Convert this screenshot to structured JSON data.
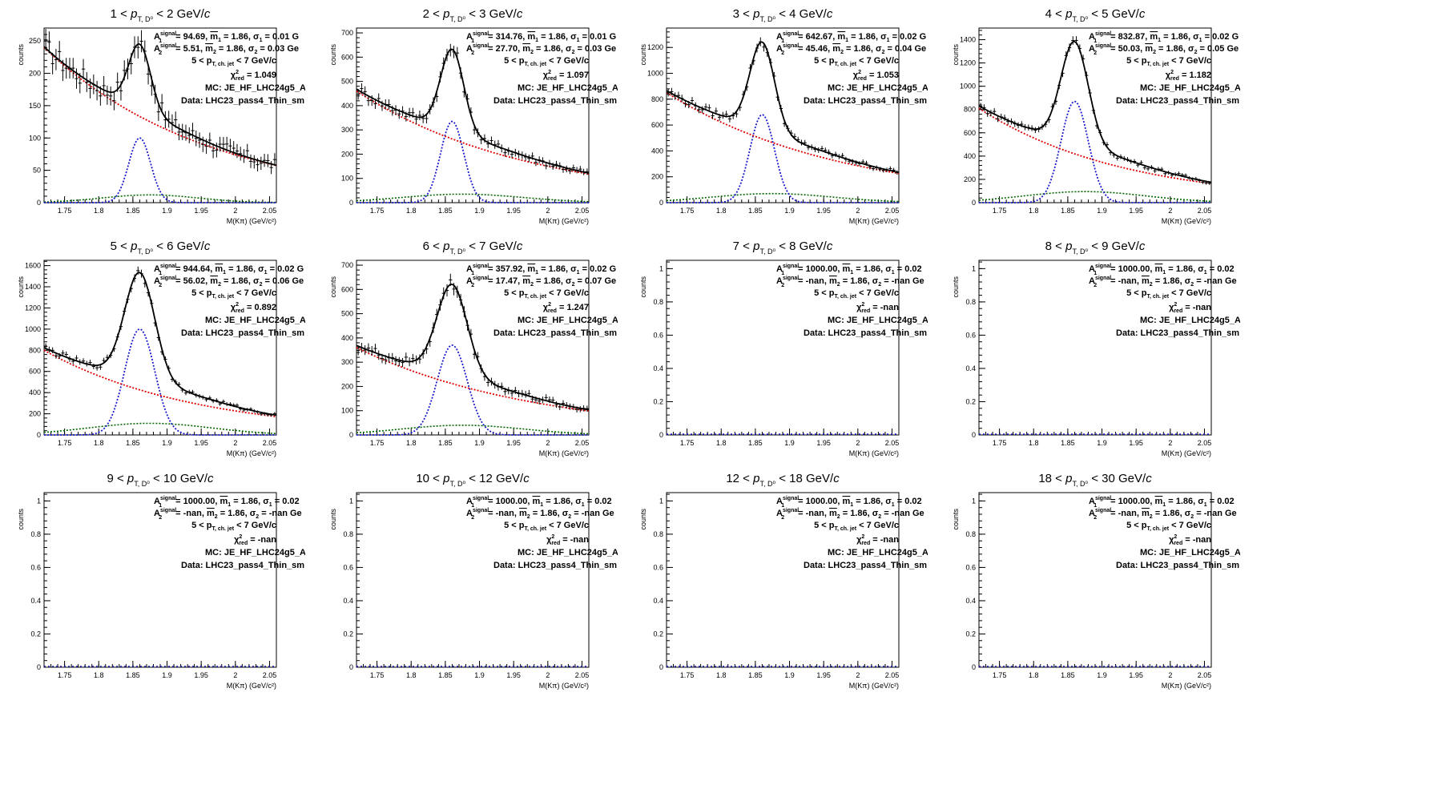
{
  "chart_data": [
    {
      "type": "scatter",
      "title": "1 < p_{T,D⁰} < 2 GeV/c",
      "title_lo": "1",
      "title_hi": "2",
      "ylabel": "counts",
      "xlabel": "M(Kπ) (GeV/c²)",
      "xlim": [
        1.72,
        2.06
      ],
      "ylim": [
        0,
        270
      ],
      "yticks": [
        0,
        50,
        100,
        150,
        200,
        250
      ],
      "fit": {
        "sig_amp": 100,
        "sig2_amp": 12,
        "sig2_sigma": 0.07,
        "bkg_a": 240,
        "bkg_b": 4.2,
        "sigma": 0.016
      },
      "info": {
        "a1": "94.69",
        "s1": "0.01 G",
        "a2": "5.51",
        "s2": "0.03 Ge",
        "chi2": "1.049"
      }
    },
    {
      "type": "scatter",
      "title": "2 < p_{T,D⁰} < 3 GeV/c",
      "title_lo": "2",
      "title_hi": "3",
      "ylabel": "counts",
      "xlabel": "M(Kπ) (GeV/c²)",
      "xlim": [
        1.72,
        2.06
      ],
      "ylim": [
        0,
        720
      ],
      "yticks": [
        0,
        100,
        200,
        300,
        400,
        500,
        600,
        700
      ],
      "fit": {
        "sig_amp": 335,
        "sig2_amp": 35,
        "sig2_sigma": 0.09,
        "bkg_a": 460,
        "bkg_b": 4.0,
        "sigma": 0.017
      },
      "info": {
        "a1": "314.76",
        "s1": "0.01 G",
        "a2": "27.70",
        "s2": "0.03 Ge",
        "chi2": "1.097"
      }
    },
    {
      "type": "scatter",
      "title": "3 < p_{T,D⁰} < 4 GeV/c",
      "title_lo": "3",
      "title_hi": "4",
      "ylabel": "counts",
      "xlabel": "M(Kπ) (GeV/c²)",
      "xlim": [
        1.72,
        2.06
      ],
      "ylim": [
        0,
        1350
      ],
      "yticks": [
        0,
        200,
        400,
        600,
        800,
        1000,
        1200
      ],
      "fit": {
        "sig_amp": 680,
        "sig2_amp": 70,
        "sig2_sigma": 0.09,
        "bkg_a": 850,
        "bkg_b": 3.9,
        "sigma": 0.018
      },
      "info": {
        "a1": "642.67",
        "s1": "0.02 G",
        "a2": "45.46",
        "s2": "0.04 Ge",
        "chi2": "1.053"
      }
    },
    {
      "type": "scatter",
      "title": "4 < p_{T,D⁰} < 5 GeV/c",
      "title_lo": "4",
      "title_hi": "5",
      "ylabel": "counts",
      "xlabel": "M(Kπ) (GeV/c²)",
      "xlim": [
        1.72,
        2.06
      ],
      "ylim": [
        0,
        1500
      ],
      "yticks": [
        0,
        200,
        400,
        600,
        800,
        1000,
        1200,
        1400
      ],
      "fit": {
        "sig_amp": 870,
        "sig2_amp": 95,
        "sig2_sigma": 0.09,
        "bkg_a": 810,
        "bkg_b": 4.7,
        "sigma": 0.02
      },
      "info": {
        "a1": "832.87",
        "s1": "0.02 G",
        "a2": "50.03",
        "s2": "0.05 Ge",
        "chi2": "1.182"
      }
    },
    {
      "type": "scatter",
      "title": "5 < p_{T,D⁰} < 6 GeV/c",
      "title_lo": "5",
      "title_hi": "6",
      "ylabel": "counts",
      "xlabel": "M(Kπ) (GeV/c²)",
      "xlim": [
        1.72,
        2.06
      ],
      "ylim": [
        0,
        1650
      ],
      "yticks": [
        0,
        200,
        400,
        600,
        800,
        1000,
        1200,
        1400,
        1600
      ],
      "fit": {
        "sig_amp": 1000,
        "sig2_amp": 110,
        "sig2_sigma": 0.09,
        "bkg_a": 800,
        "bkg_b": 4.5,
        "sigma": 0.022
      },
      "info": {
        "a1": "944.64",
        "s1": "0.02 G",
        "a2": "56.02",
        "s2": "0.06 Ge",
        "chi2": "0.892"
      }
    },
    {
      "type": "scatter",
      "title": "6 < p_{T,D⁰} < 7 GeV/c",
      "title_lo": "6",
      "title_hi": "7",
      "ylabel": "counts",
      "xlabel": "M(Kπ) (GeV/c²)",
      "xlim": [
        1.72,
        2.06
      ],
      "ylim": [
        0,
        720
      ],
      "yticks": [
        0,
        100,
        200,
        300,
        400,
        500,
        600,
        700
      ],
      "fit": {
        "sig_amp": 370,
        "sig2_amp": 40,
        "sig2_sigma": 0.09,
        "bkg_a": 360,
        "bkg_b": 3.8,
        "sigma": 0.022
      },
      "info": {
        "a1": "357.92",
        "s1": "0.02 G",
        "a2": "17.47",
        "s2": "0.07 Ge",
        "chi2": "1.247"
      }
    },
    {
      "type": "scatter",
      "title": "7 < p_{T,D⁰} < 8 GeV/c",
      "title_lo": "7",
      "title_hi": "8",
      "ylabel": "counts",
      "xlabel": "M(Kπ) (GeV/c²)",
      "xlim": [
        1.72,
        2.06
      ],
      "ylim": [
        0,
        1.05
      ],
      "yticks": [
        0,
        0.2,
        0.4,
        0.6,
        0.8,
        1
      ],
      "fit": null,
      "info": {
        "a1": "1000.00",
        "s1": "0.02",
        "a2": "-nan",
        "s2": "-nan Ge",
        "chi2": "-nan"
      }
    },
    {
      "type": "scatter",
      "title": "8 < p_{T,D⁰} < 9 GeV/c",
      "title_lo": "8",
      "title_hi": "9",
      "ylabel": "counts",
      "xlabel": "M(Kπ) (GeV/c²)",
      "xlim": [
        1.72,
        2.06
      ],
      "ylim": [
        0,
        1.05
      ],
      "yticks": [
        0,
        0.2,
        0.4,
        0.6,
        0.8,
        1
      ],
      "fit": null,
      "info": {
        "a1": "1000.00",
        "s1": "0.02",
        "a2": "-nan",
        "s2": "-nan Ge",
        "chi2": "-nan"
      }
    },
    {
      "type": "scatter",
      "title": "9 < p_{T,D⁰} < 10 GeV/c",
      "title_lo": "9",
      "title_hi": "10",
      "ylabel": "counts",
      "xlabel": "M(Kπ) (GeV/c²)",
      "xlim": [
        1.72,
        2.06
      ],
      "ylim": [
        0,
        1.05
      ],
      "yticks": [
        0,
        0.2,
        0.4,
        0.6,
        0.8,
        1
      ],
      "fit": null,
      "info": {
        "a1": "1000.00",
        "s1": "0.02",
        "a2": "-nan",
        "s2": "-nan Ge",
        "chi2": "-nan"
      }
    },
    {
      "type": "scatter",
      "title": "10 < p_{T,D⁰} < 12 GeV/c",
      "title_lo": "10",
      "title_hi": "12",
      "ylabel": "counts",
      "xlabel": "M(Kπ) (GeV/c²)",
      "xlim": [
        1.72,
        2.06
      ],
      "ylim": [
        0,
        1.05
      ],
      "yticks": [
        0,
        0.2,
        0.4,
        0.6,
        0.8,
        1
      ],
      "fit": null,
      "info": {
        "a1": "1000.00",
        "s1": "0.02",
        "a2": "-nan",
        "s2": "-nan Ge",
        "chi2": "-nan"
      }
    },
    {
      "type": "scatter",
      "title": "12 < p_{T,D⁰} < 18 GeV/c",
      "title_lo": "12",
      "title_hi": "18",
      "ylabel": "counts",
      "xlabel": "M(Kπ) (GeV/c²)",
      "xlim": [
        1.72,
        2.06
      ],
      "ylim": [
        0,
        1.05
      ],
      "yticks": [
        0,
        0.2,
        0.4,
        0.6,
        0.8,
        1
      ],
      "fit": null,
      "info": {
        "a1": "1000.00",
        "s1": "0.02",
        "a2": "-nan",
        "s2": "-nan Ge",
        "chi2": "-nan"
      }
    },
    {
      "type": "scatter",
      "title": "18 < p_{T,D⁰} < 30 GeV/c",
      "title_lo": "18",
      "title_hi": "30",
      "ylabel": "counts",
      "xlabel": "M(Kπ) (GeV/c²)",
      "xlim": [
        1.72,
        2.06
      ],
      "ylim": [
        0,
        1.05
      ],
      "yticks": [
        0,
        0.2,
        0.4,
        0.6,
        0.8,
        1
      ],
      "fit": null,
      "info": {
        "a1": "1000.00",
        "s1": "0.02",
        "a2": "-nan",
        "s2": "-nan Ge",
        "chi2": "-nan"
      }
    }
  ],
  "common": {
    "xticks": [
      1.75,
      1.8,
      1.85,
      1.9,
      1.95,
      2,
      2.05
    ],
    "mean1": "1.86",
    "mean2": "1.86",
    "jet_range": "5 < p_{T, ch. jet} < 7 GeV/c",
    "mc": "MC: JE_HF_LHC24g5_A",
    "data": "Data: LHC23_pass4_Thin_sm"
  },
  "colors": {
    "data": "#000000",
    "fit": "#000000",
    "background": "#e00000",
    "signal": "#1a1acc",
    "reflection": "#006600"
  }
}
